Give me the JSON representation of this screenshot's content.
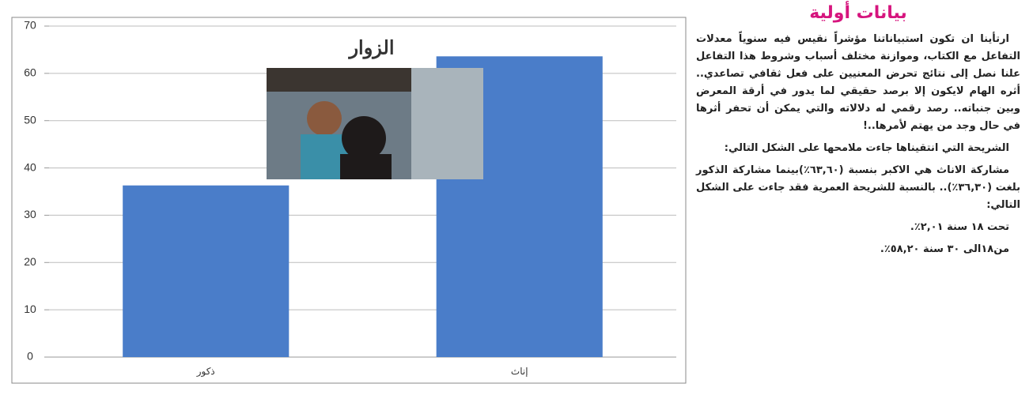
{
  "chart_data": {
    "type": "bar",
    "title": "الزوار",
    "categories": [
      "ذكور",
      "إناث"
    ],
    "values": [
      36.3,
      63.6
    ],
    "color": "#4a7dc9",
    "ylim": [
      0,
      70
    ],
    "yticks": [
      0,
      10,
      20,
      30,
      40,
      50,
      60,
      70
    ],
    "grid": true
  },
  "article": {
    "title": "بيانات أولية",
    "paragraphs": [
      "ارتأينا ان تكون استبياناتنا مؤشراً نقيس فيه سنوياً معدلات التفاعل مع الكتاب، وموازنة مختلف أسباب وشروط هذا التفاعل علنا نصل إلى نتائج تحرض المعنيين على فعل ثقافي تصاعدي.. أثره الهام لايكون إلا برصد حقيقي لما يدور في أرقة المعرض وبين جنباته.. رصد رقمي له دلالاته والتي يمكن أن تحفر أثرها في حال وجد من يهتم لأمرها..!",
      "الشريحة التي انتقيناها جاءت ملامحها على الشكل التالي:",
      "مشاركة الاناث هي الاكبر بنسبة (٦٣,٦٠٪)بينما مشاركة الذكور بلغت (٣٦,٣٠٪).. بالنسبة للشريحة العمرية فقد جاءت على الشكل التالي:",
      "تحت ١٨ سنة ٢,٠١٪.",
      "من١٨الى ٣٠ سنة ٥٨,٢٠٪."
    ]
  }
}
